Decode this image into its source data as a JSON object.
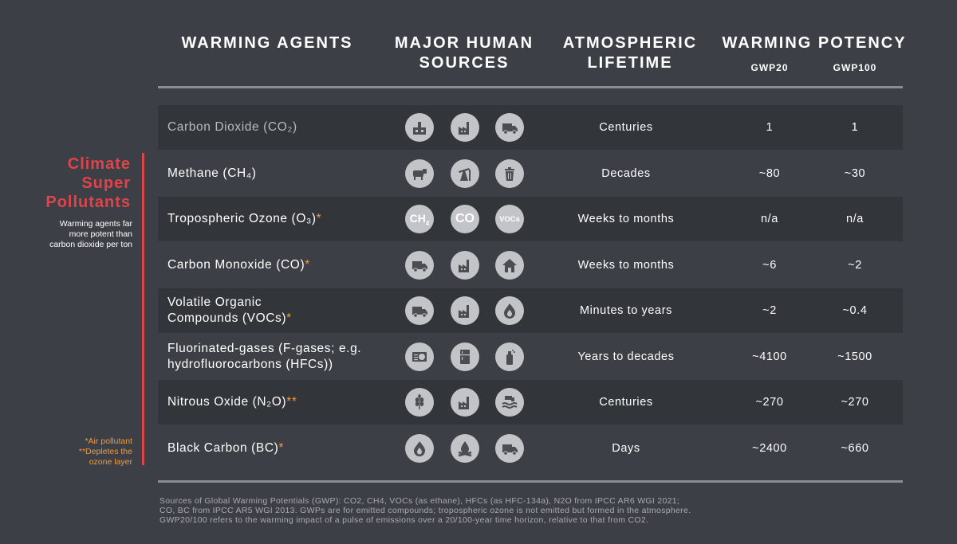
{
  "headers": {
    "agents": "WARMING AGENTS",
    "sources_line1": "MAJOR HUMAN",
    "sources_line2": "SOURCES",
    "lifetime_line1": "ATMOSPHERIC",
    "lifetime_line2": "LIFETIME",
    "potency": "WARMING POTENCY",
    "gwp20": "GWP20",
    "gwp100": "GWP100"
  },
  "side": {
    "title_line1": "Climate",
    "title_line2": "Super",
    "title_line3": "Pollutants",
    "note_line1": "Warming agents far",
    "note_line2": "more potent than",
    "note_line3": "carbon dioxide per ton",
    "legend_line1": "*Air pollutant",
    "legend_line2": "**Depletes the",
    "legend_line3": "ozone layer"
  },
  "rows": [
    {
      "agent_line1": "Carbon Dioxide (CO₂)",
      "agent_line2": "",
      "star": "",
      "lifetime": "Centuries",
      "gwp20": "1",
      "gwp100": "1",
      "icons": [
        "factory-icon",
        "industry-icon",
        "truck-icon"
      ]
    },
    {
      "agent_line1": "Methane (CH₄)",
      "agent_line2": "",
      "star": "",
      "lifetime": "Decades",
      "gwp20": "~80",
      "gwp100": "~30",
      "icons": [
        "cow-icon",
        "oil-pump-icon",
        "trash-icon"
      ]
    },
    {
      "agent_line1": "Tropospheric Ozone (O₃)",
      "agent_line2": "",
      "star": "*",
      "lifetime": "Weeks to months",
      "gwp20": "n/a",
      "gwp100": "n/a",
      "icons": [
        "ch4-text-icon",
        "co-text-icon",
        "vocs-text-icon"
      ]
    },
    {
      "agent_line1": "Carbon Monoxide (CO)",
      "agent_line2": "",
      "star": "*",
      "lifetime": "Weeks to months",
      "gwp20": "~6",
      "gwp100": "~2",
      "icons": [
        "truck-icon",
        "industry-icon",
        "house-icon"
      ]
    },
    {
      "agent_line1": "Volatile Organic",
      "agent_line2": "Compounds (VOCs)",
      "star": "*",
      "lifetime": "Minutes to years",
      "gwp20": "~2",
      "gwp100": "~0.4",
      "icons": [
        "truck-icon",
        "industry-icon",
        "flame-icon"
      ]
    },
    {
      "agent_line1": "Fluorinated-gases (F-gases; e.g.",
      "agent_line2": "hydrofluorocarbons (HFCs))",
      "star": "",
      "lifetime": "Years to decades",
      "gwp20": "~4100",
      "gwp100": "~1500",
      "icons": [
        "air-conditioner-icon",
        "refrigerator-icon",
        "spray-can-icon"
      ]
    },
    {
      "agent_line1": "Nitrous Oxide (N₂O)",
      "agent_line2": "",
      "star": "**",
      "lifetime": "Centuries",
      "gwp20": "~270",
      "gwp100": "~270",
      "icons": [
        "wheat-icon",
        "industry-icon",
        "wastewater-icon"
      ]
    },
    {
      "agent_line1": "Black Carbon (BC)",
      "agent_line2": "",
      "star": "*",
      "lifetime": "Days",
      "gwp20": "~2400",
      "gwp100": "~660",
      "icons": [
        "flame-icon",
        "campfire-icon",
        "truck-icon"
      ]
    }
  ],
  "icon_texts": {
    "ch4": "CH",
    "ch4_sub": "4",
    "co": "CO",
    "vocs": "VOCs"
  },
  "footnote": {
    "line1": "Sources of Global Warming Potentials (GWP): CO2, CH4, VOCs (as ethane), HFCs (as HFC-134a), N2O from IPCC AR6 WGI 2021;",
    "line2": "CO, BC from IPCC AR5 WGI 2013. GWPs are for emitted compounds; tropospheric ozone is not emitted but formed in the atmosphere.",
    "line3": "GWP20/100 refers to the warming impact of a pulse of emissions over a 20/100-year time horizon, relative to that from CO2."
  },
  "colors": {
    "background": "#3c3f45",
    "row_shade": "#32353a",
    "accent_red": "#e0444a",
    "accent_orange": "#f19a3e",
    "icon_circle": "#c2c4c8"
  }
}
